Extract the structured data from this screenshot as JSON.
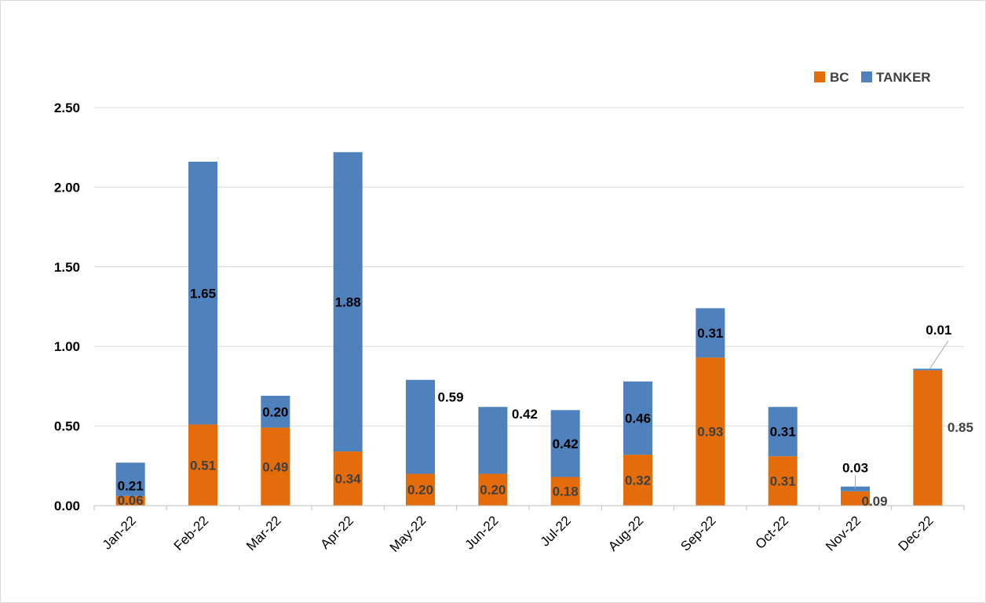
{
  "chart_data": {
    "type": "bar",
    "stacked": true,
    "categories": [
      "Jan-22",
      "Feb-22",
      "Mar-22",
      "Apr-22",
      "May-22",
      "Jun-22",
      "Jul-22",
      "Aug-22",
      "Sep-22",
      "Oct-22",
      "Nov-22",
      "Dec-22"
    ],
    "series": [
      {
        "name": "BC",
        "color": "#e46c0a",
        "values": [
          0.06,
          0.51,
          0.49,
          0.34,
          0.2,
          0.2,
          0.18,
          0.32,
          0.93,
          0.31,
          0.09,
          0.85
        ]
      },
      {
        "name": "TANKER",
        "color": "#4f81bd",
        "values": [
          0.21,
          1.65,
          0.2,
          1.88,
          0.59,
          0.42,
          0.42,
          0.46,
          0.31,
          0.31,
          0.03,
          0.01
        ]
      }
    ],
    "y_ticks": [
      "0.00",
      "0.50",
      "1.00",
      "1.50",
      "2.00",
      "2.50"
    ],
    "ylim": [
      0,
      2.5
    ],
    "grid": true,
    "legend_position": "top-right",
    "title": "",
    "xlabel": "",
    "ylabel": ""
  }
}
